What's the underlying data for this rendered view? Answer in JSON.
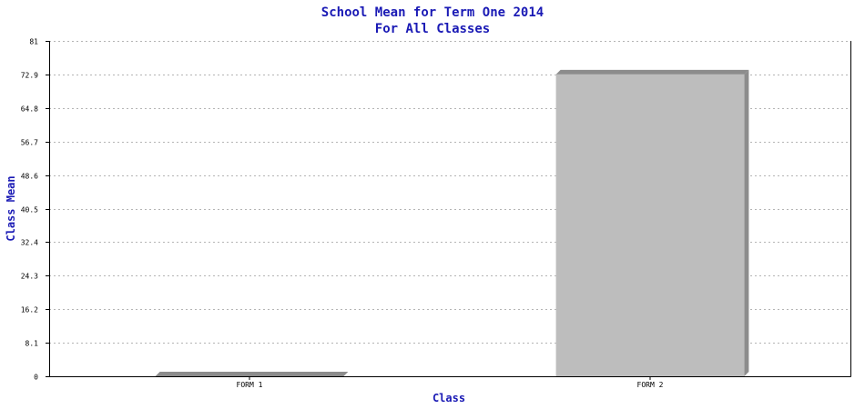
{
  "chart_data": {
    "type": "bar",
    "title": "School Mean for Term One 2014",
    "subtitle": "For All Classes",
    "xlabel": "Class",
    "ylabel": "Class Mean",
    "categories": [
      "FORM 1",
      "FORM 2"
    ],
    "values": [
      0,
      72.9
    ],
    "ylim": [
      0,
      81
    ],
    "yticks": [
      "0",
      "8.1",
      "16.2",
      "24.3",
      "32.4",
      "40.5",
      "48.6",
      "56.7",
      "64.8",
      "72.9",
      "81"
    ],
    "grid": true,
    "legend": "none",
    "colors": {
      "bar_face": "#bdbdbd",
      "bar_side": "#8c8c8c",
      "title": "#1a1ab5",
      "axis": "#000000",
      "grid": "#b4b4b4"
    }
  }
}
